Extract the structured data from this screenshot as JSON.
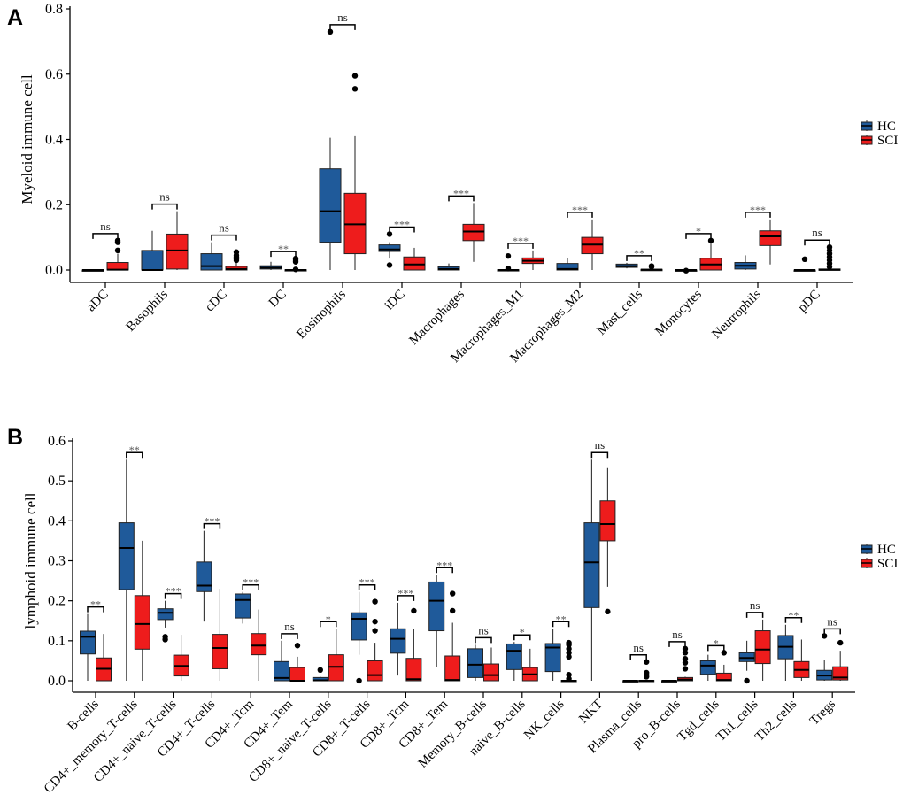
{
  "chart_data": [
    {
      "type": "box",
      "panel_label": "A",
      "ylabel": "Myeloid immune cell",
      "ylim": [
        0,
        0.8
      ],
      "yticks": [
        "0.0",
        "0.2",
        "0.4",
        "0.6",
        "0.8"
      ],
      "ytick_values": [
        0,
        0.2,
        0.4,
        0.6,
        0.8
      ],
      "legend": {
        "placement": "right",
        "entries": [
          {
            "name": "HC",
            "color": "#1f5a9a"
          },
          {
            "name": "SCI",
            "color": "#ee1c1c"
          }
        ]
      },
      "categories": [
        "aDC",
        "Basophils",
        "cDC",
        "DC",
        "Eosinophils",
        "iDC",
        "Macrophages",
        "Macrophages_M1",
        "Macrophages_M2",
        "Mast_cells",
        "Monocytes",
        "Neutrophils",
        "pDC"
      ],
      "significance": [
        "ns",
        "ns",
        "ns",
        "**",
        "ns",
        "***",
        "***",
        "***",
        "***",
        "**",
        "*",
        "***",
        "ns"
      ],
      "series": [
        {
          "name": "HC",
          "boxes": [
            {
              "whislo": 0,
              "q1": 0,
              "med": 0,
              "q3": 0,
              "whishi": 0,
              "fliers": []
            },
            {
              "whislo": 0,
              "q1": 0,
              "med": 0,
              "q3": 0.06,
              "whishi": 0.12,
              "fliers": []
            },
            {
              "whislo": 0,
              "q1": 0,
              "med": 0.012,
              "q3": 0.05,
              "whishi": 0.085,
              "fliers": []
            },
            {
              "whislo": 0,
              "q1": 0.003,
              "med": 0.007,
              "q3": 0.013,
              "whishi": 0.025,
              "fliers": []
            },
            {
              "whislo": 0,
              "q1": 0.085,
              "med": 0.18,
              "q3": 0.31,
              "whishi": 0.405,
              "fliers": [
                0.73
              ]
            },
            {
              "whislo": 0.035,
              "q1": 0.057,
              "med": 0.063,
              "q3": 0.077,
              "whishi": 0.085,
              "fliers": [
                0.015,
                0.11
              ]
            },
            {
              "whislo": 0,
              "q1": 0,
              "med": 0.003,
              "q3": 0.01,
              "whishi": 0.02,
              "fliers": []
            },
            {
              "whislo": 0,
              "q1": 0,
              "med": 0,
              "q3": 0.001,
              "whishi": 0.002,
              "fliers": [
                0.005,
                0.043
              ]
            },
            {
              "whislo": 0,
              "q1": 0,
              "med": 0.003,
              "q3": 0.02,
              "whishi": 0.037,
              "fliers": []
            },
            {
              "whislo": 0.005,
              "q1": 0.008,
              "med": 0.012,
              "q3": 0.018,
              "whishi": 0.022,
              "fliers": []
            },
            {
              "whislo": 0,
              "q1": 0,
              "med": 0,
              "q3": 0,
              "whishi": 0,
              "fliers": [
                -0.002
              ]
            },
            {
              "whislo": 0,
              "q1": 0.003,
              "med": 0.013,
              "q3": 0.023,
              "whishi": 0.045,
              "fliers": []
            },
            {
              "whislo": 0,
              "q1": 0,
              "med": 0,
              "q3": 0,
              "whishi": 0,
              "fliers": [
                0.033
              ]
            }
          ]
        },
        {
          "name": "SCI",
          "boxes": [
            {
              "whislo": 0,
              "q1": 0,
              "med": 0.001,
              "q3": 0.023,
              "whishi": 0.05,
              "fliers": [
                0.06,
                0.085,
                0.09
              ]
            },
            {
              "whislo": 0,
              "q1": 0.003,
              "med": 0.06,
              "q3": 0.11,
              "whishi": 0.18,
              "fliers": []
            },
            {
              "whislo": 0,
              "q1": 0,
              "med": 0.003,
              "q3": 0.011,
              "whishi": 0.025,
              "fliers": [
                0.03,
                0.035,
                0.04,
                0.045,
                0.055
              ]
            },
            {
              "whislo": 0,
              "q1": 0,
              "med": 0,
              "q3": 0.001,
              "whishi": 0.001,
              "fliers": [
                0.002,
                0.025,
                0.03,
                0.035
              ]
            },
            {
              "whislo": 0,
              "q1": 0.05,
              "med": 0.14,
              "q3": 0.235,
              "whishi": 0.41,
              "fliers": [
                0.555,
                0.595
              ]
            },
            {
              "whislo": 0,
              "q1": 0,
              "med": 0.017,
              "q3": 0.04,
              "whishi": 0.068,
              "fliers": []
            },
            {
              "whislo": 0.025,
              "q1": 0.09,
              "med": 0.118,
              "q3": 0.14,
              "whishi": 0.205,
              "fliers": []
            },
            {
              "whislo": 0,
              "q1": 0.02,
              "med": 0.028,
              "q3": 0.037,
              "whishi": 0.06,
              "fliers": []
            },
            {
              "whislo": 0,
              "q1": 0.05,
              "med": 0.078,
              "q3": 0.1,
              "whishi": 0.155,
              "fliers": []
            },
            {
              "whislo": 0,
              "q1": 0,
              "med": 0.001,
              "q3": 0.002,
              "whishi": 0.005,
              "fliers": [
                0.01,
                0.012
              ]
            },
            {
              "whislo": 0,
              "q1": 0,
              "med": 0.017,
              "q3": 0.036,
              "whishi": 0.09,
              "fliers": [
                0.09
              ]
            },
            {
              "whislo": 0.017,
              "q1": 0.075,
              "med": 0.103,
              "q3": 0.12,
              "whishi": 0.155,
              "fliers": []
            },
            {
              "whislo": 0,
              "q1": 0,
              "med": 0.001,
              "q3": 0.003,
              "whishi": 0.005,
              "fliers": [
                0.01,
                0.02,
                0.03,
                0.04,
                0.05,
                0.06,
                0.07
              ]
            }
          ]
        }
      ]
    },
    {
      "type": "box",
      "panel_label": "B",
      "ylabel": "lymphoid immune cell",
      "ylim": [
        0,
        0.6
      ],
      "yticks": [
        "0.0",
        "0.1",
        "0.2",
        "0.3",
        "0.4",
        "0.5",
        "0.6"
      ],
      "ytick_values": [
        0,
        0.1,
        0.2,
        0.3,
        0.4,
        0.5,
        0.6
      ],
      "legend": {
        "placement": "right",
        "entries": [
          {
            "name": "HC",
            "color": "#1f5a9a"
          },
          {
            "name": "SCI",
            "color": "#ee1c1c"
          }
        ]
      },
      "categories": [
        "B-cells",
        "CD4+_memory_T-cells",
        "CD4+_naive_T-cells",
        "CD4+_T-cells",
        "CD4+_Tcm",
        "CD4+_Tem",
        "CD8+_naive_T-cells",
        "CD8+_T-cells",
        "CD8+_Tcm",
        "CD8+_Tem",
        "Memory_B-cells",
        "naive_B-cells",
        "NK_cells",
        "NKT",
        "Plasma_cells",
        "pro_B-cells",
        "Tgd_cells",
        "Th1_cells",
        "Th2_cells",
        "Tregs"
      ],
      "significance": [
        "**",
        "**",
        "***",
        "***",
        "***",
        "ns",
        "*",
        "***",
        "***",
        "***",
        "ns",
        "*",
        "**",
        "ns",
        "ns",
        "ns",
        "*",
        "ns",
        "**",
        "ns"
      ],
      "series": [
        {
          "name": "HC",
          "boxes": [
            {
              "whislo": 0,
              "q1": 0.067,
              "med": 0.11,
              "q3": 0.124,
              "whishi": 0.167,
              "fliers": []
            },
            {
              "whislo": 0,
              "q1": 0.228,
              "med": 0.332,
              "q3": 0.395,
              "whishi": 0.553,
              "fliers": []
            },
            {
              "whislo": 0.133,
              "q1": 0.153,
              "med": 0.17,
              "q3": 0.18,
              "whishi": 0.2,
              "fliers": [
                0.103,
                0.11
              ]
            },
            {
              "whislo": 0.148,
              "q1": 0.223,
              "med": 0.238,
              "q3": 0.297,
              "whishi": 0.375,
              "fliers": []
            },
            {
              "whislo": 0.143,
              "q1": 0.157,
              "med": 0.202,
              "q3": 0.217,
              "whishi": 0.222,
              "fliers": []
            },
            {
              "whislo": 0,
              "q1": 0,
              "med": 0.007,
              "q3": 0.048,
              "whishi": 0.1,
              "fliers": []
            },
            {
              "whislo": 0,
              "q1": 0,
              "med": 0.001,
              "q3": 0.008,
              "whishi": 0.01,
              "fliers": [
                0.027
              ]
            },
            {
              "whislo": 0.065,
              "q1": 0.102,
              "med": 0.155,
              "q3": 0.17,
              "whishi": 0.222,
              "fliers": [
                0
              ]
            },
            {
              "whislo": 0.013,
              "q1": 0.069,
              "med": 0.105,
              "q3": 0.13,
              "whishi": 0.195,
              "fliers": []
            },
            {
              "whislo": 0.035,
              "q1": 0.125,
              "med": 0.2,
              "q3": 0.247,
              "whishi": 0.265,
              "fliers": []
            },
            {
              "whislo": 0,
              "q1": 0.008,
              "med": 0.04,
              "q3": 0.08,
              "whishi": 0.09,
              "fliers": []
            },
            {
              "whislo": 0,
              "q1": 0.028,
              "med": 0.075,
              "q3": 0.092,
              "whishi": 0.097,
              "fliers": []
            },
            {
              "whislo": 0,
              "q1": 0.023,
              "med": 0.083,
              "q3": 0.093,
              "whishi": 0.13,
              "fliers": []
            },
            {
              "whislo": 0,
              "q1": 0.183,
              "med": 0.296,
              "q3": 0.395,
              "whishi": 0.553,
              "fliers": []
            },
            {
              "whislo": 0,
              "q1": 0,
              "med": 0,
              "q3": 0,
              "whishi": 0,
              "fliers": []
            },
            {
              "whislo": 0,
              "q1": 0,
              "med": 0,
              "q3": 0,
              "whishi": 0,
              "fliers": []
            },
            {
              "whislo": 0,
              "q1": 0.016,
              "med": 0.038,
              "q3": 0.05,
              "whishi": 0.065,
              "fliers": []
            },
            {
              "whislo": 0.025,
              "q1": 0.048,
              "med": 0.057,
              "q3": 0.07,
              "whishi": 0.1,
              "fliers": [
                0
              ]
            },
            {
              "whislo": 0,
              "q1": 0.055,
              "med": 0.085,
              "q3": 0.113,
              "whishi": 0.14,
              "fliers": []
            },
            {
              "whislo": 0,
              "q1": 0.002,
              "med": 0.013,
              "q3": 0.026,
              "whishi": 0.052,
              "fliers": [
                0.112
              ]
            }
          ]
        },
        {
          "name": "SCI",
          "boxes": [
            {
              "whislo": 0,
              "q1": 0,
              "med": 0.03,
              "q3": 0.057,
              "whishi": 0.117,
              "fliers": []
            },
            {
              "whislo": 0,
              "q1": 0.079,
              "med": 0.142,
              "q3": 0.213,
              "whishi": 0.35,
              "fliers": []
            },
            {
              "whislo": 0,
              "q1": 0.012,
              "med": 0.037,
              "q3": 0.064,
              "whishi": 0.115,
              "fliers": []
            },
            {
              "whislo": 0,
              "q1": 0.03,
              "med": 0.082,
              "q3": 0.116,
              "whishi": 0.23,
              "fliers": []
            },
            {
              "whislo": 0,
              "q1": 0.065,
              "med": 0.088,
              "q3": 0.118,
              "whishi": 0.178,
              "fliers": []
            },
            {
              "whislo": 0,
              "q1": 0,
              "med": 0,
              "q3": 0.033,
              "whishi": 0.06,
              "fliers": [
                0.088
              ]
            },
            {
              "whislo": 0,
              "q1": 0,
              "med": 0.035,
              "q3": 0.065,
              "whishi": 0.13,
              "fliers": []
            },
            {
              "whislo": 0,
              "q1": 0,
              "med": 0.014,
              "q3": 0.05,
              "whishi": 0.095,
              "fliers": [
                0.125,
                0.148,
                0.198
              ]
            },
            {
              "whislo": 0,
              "q1": 0,
              "med": 0.004,
              "q3": 0.056,
              "whishi": 0.13,
              "fliers": [
                0.175
              ]
            },
            {
              "whislo": 0,
              "q1": 0,
              "med": 0.002,
              "q3": 0.062,
              "whishi": 0.145,
              "fliers": [
                0.175,
                0.218
              ]
            },
            {
              "whislo": 0,
              "q1": 0,
              "med": 0.014,
              "q3": 0.042,
              "whishi": 0.083,
              "fliers": []
            },
            {
              "whislo": 0,
              "q1": 0,
              "med": 0.016,
              "q3": 0.033,
              "whishi": 0.08,
              "fliers": []
            },
            {
              "whislo": 0,
              "q1": 0,
              "med": 0,
              "q3": 0.001,
              "whishi": 0.002,
              "fliers": [
                0.005,
                0.015,
                0.06,
                0.07,
                0.08,
                0.09,
                0.095
              ]
            },
            {
              "whislo": 0.235,
              "q1": 0.35,
              "med": 0.392,
              "q3": 0.45,
              "whishi": 0.532,
              "fliers": [
                0.173
              ]
            },
            {
              "whislo": 0,
              "q1": 0,
              "med": 0,
              "q3": 0.001,
              "whishi": 0.002,
              "fliers": [
                0.01,
                0.015,
                0.02,
                0.047
              ]
            },
            {
              "whislo": 0,
              "q1": 0,
              "med": 0.003,
              "q3": 0.008,
              "whishi": 0.01,
              "fliers": [
                0.03,
                0.045,
                0.055,
                0.07,
                0.08
              ]
            },
            {
              "whislo": 0,
              "q1": 0,
              "med": 0.002,
              "q3": 0.019,
              "whishi": 0.04,
              "fliers": [
                0.07
              ]
            },
            {
              "whislo": 0,
              "q1": 0.043,
              "med": 0.078,
              "q3": 0.125,
              "whishi": 0.153,
              "fliers": []
            },
            {
              "whislo": 0,
              "q1": 0.008,
              "med": 0.027,
              "q3": 0.048,
              "whishi": 0.103,
              "fliers": []
            },
            {
              "whislo": 0,
              "q1": 0.002,
              "med": 0.008,
              "q3": 0.035,
              "whishi": 0.075,
              "fliers": [
                0.095
              ]
            }
          ]
        }
      ]
    }
  ]
}
